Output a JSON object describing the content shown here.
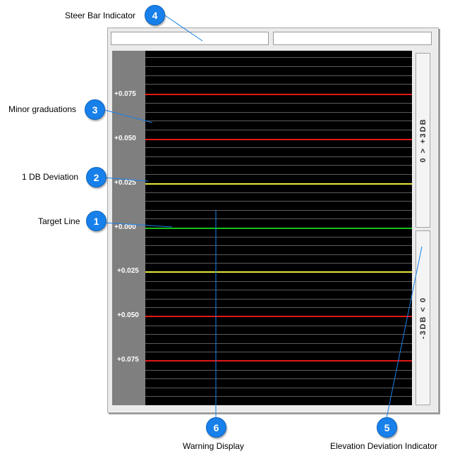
{
  "steer_bar": {
    "left_value": "",
    "right_value": ""
  },
  "scale": {
    "labels": [
      "+0.075",
      "+0.050",
      "+0.025",
      "+0.000",
      "+0.025",
      "+0.050",
      "+0.075"
    ]
  },
  "deviation_indicator": {
    "upper_label": "0 > +3DB",
    "lower_label": "-3DB < 0"
  },
  "colors": {
    "limit_line": "#e01818",
    "one_db_line": "#e8e83a",
    "target_line": "#18c018",
    "callout": "#1780ea"
  },
  "callouts": [
    {
      "number": "1",
      "label": "Target Line"
    },
    {
      "number": "2",
      "label": "1 DB Deviation"
    },
    {
      "number": "3",
      "label": "Minor graduations"
    },
    {
      "number": "4",
      "label": "Steer Bar Indicator"
    },
    {
      "number": "5",
      "label": "Elevation Deviation Indicator"
    },
    {
      "number": "6",
      "label": "Warning Display"
    }
  ]
}
